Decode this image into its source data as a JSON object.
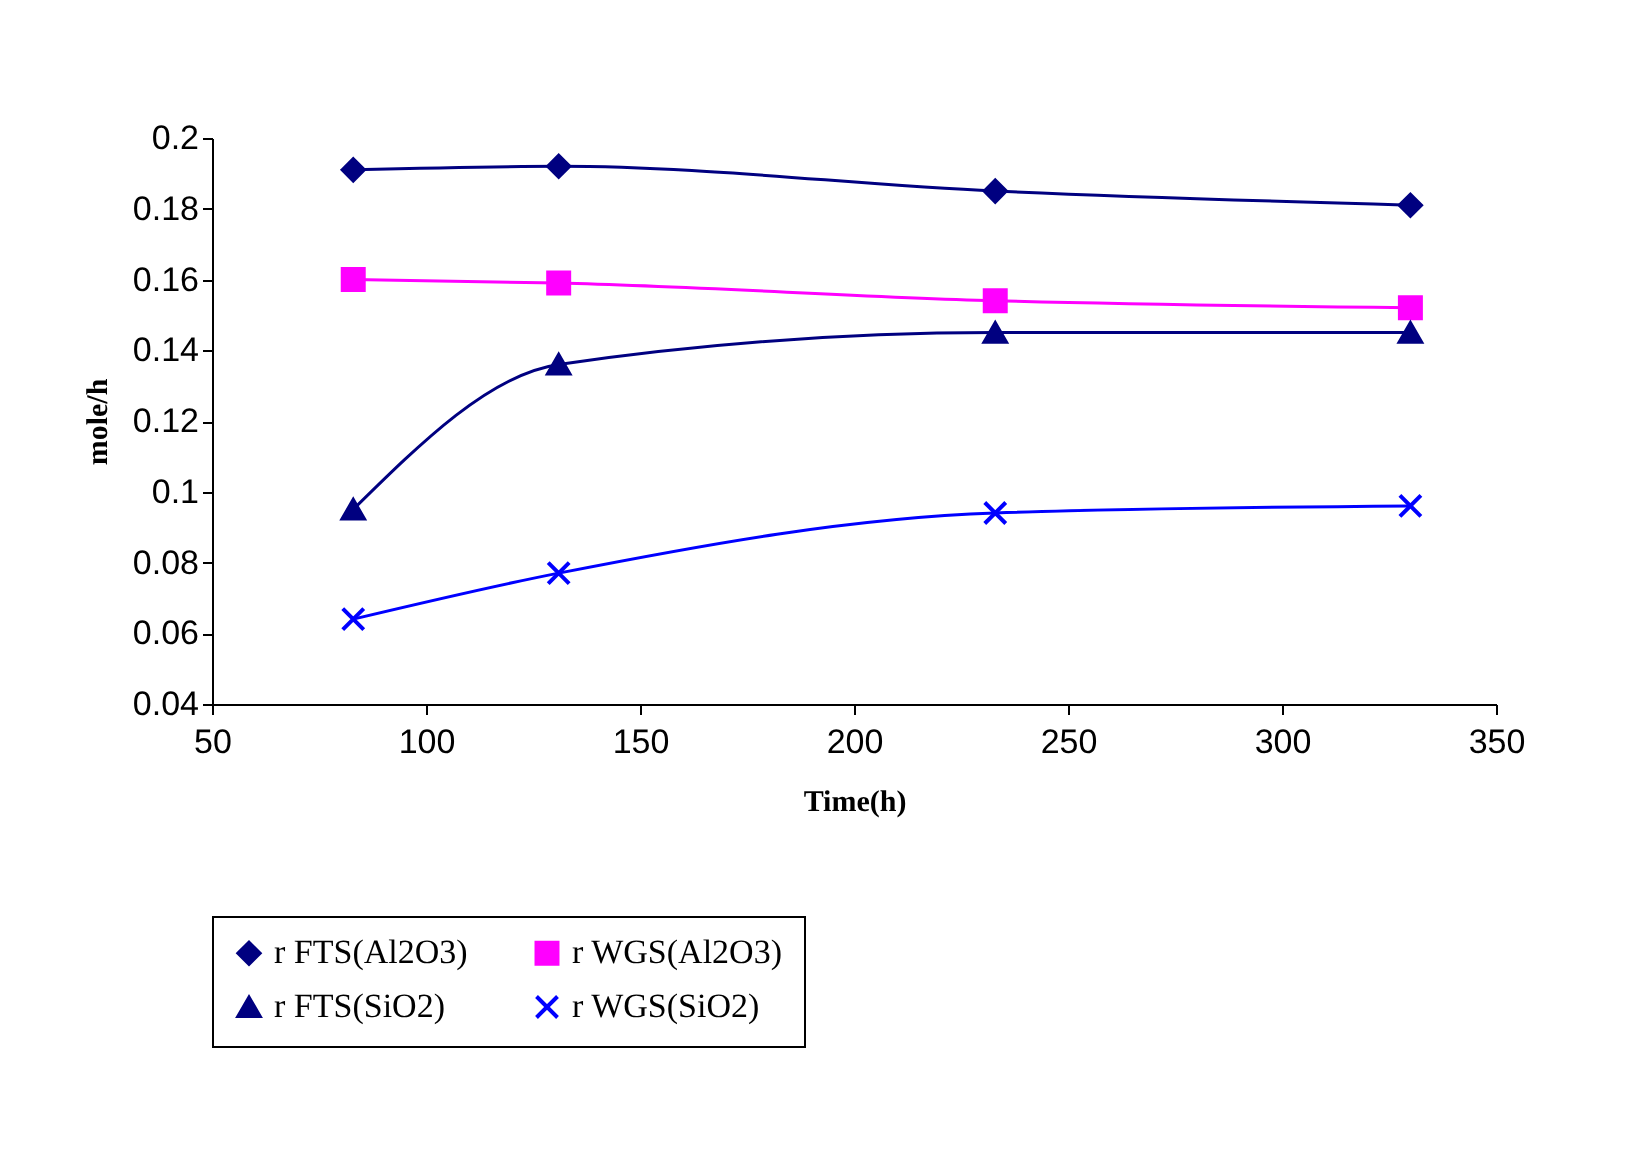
{
  "chart_data": {
    "type": "line",
    "xlabel": "Time(h)",
    "ylabel": "mole/h",
    "x": [
      83,
      131,
      233,
      330
    ],
    "series": [
      {
        "name": "r FTS(Al2O3)",
        "color": "#000080",
        "marker": "diamond",
        "values": [
          0.191,
          0.192,
          0.185,
          0.181
        ]
      },
      {
        "name": "r WGS(Al2O3)",
        "color": "#ff00ff",
        "marker": "square",
        "values": [
          0.16,
          0.159,
          0.154,
          0.152
        ]
      },
      {
        "name": "r FTS(SiO2)",
        "color": "#000080",
        "marker": "triangle",
        "values": [
          0.095,
          0.136,
          0.145,
          0.145
        ]
      },
      {
        "name": "r WGS(SiO2)",
        "color": "#0000ff",
        "marker": "cross",
        "values": [
          0.064,
          0.077,
          0.094,
          0.096
        ]
      }
    ],
    "xlim": [
      50,
      350
    ],
    "xticks": [
      50,
      100,
      150,
      200,
      250,
      300,
      350
    ],
    "ylim": [
      0.04,
      0.2
    ],
    "yticks": [
      0.04,
      0.06,
      0.08,
      0.1,
      0.12,
      0.14,
      0.16,
      0.18,
      0.2
    ],
    "grid": false,
    "legend": "bottom",
    "line_style": "solid"
  }
}
